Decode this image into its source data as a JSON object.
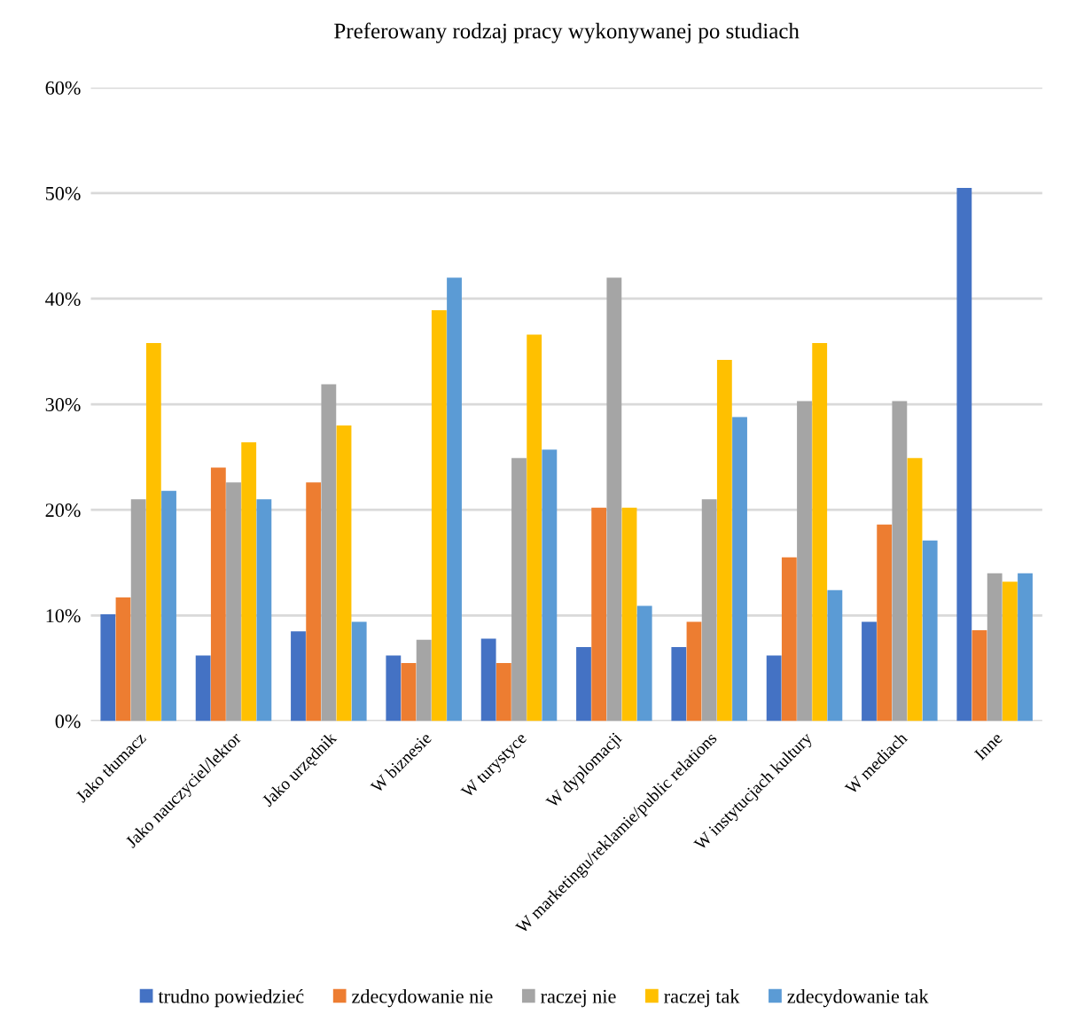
{
  "chart_data": {
    "type": "bar",
    "title": "Preferowany rodzaj pracy wykonywanej po studiach",
    "categories": [
      "Jako tłumacz",
      "Jako nauczyciel/lektor",
      "Jako urzędnik",
      "W biznesie",
      "W turystyce",
      "W dyplomacji",
      "W marketingu/reklamie/public relations",
      "W instytucjach kultury",
      "W mediach",
      "Inne"
    ],
    "series": [
      {
        "name": "trudno powiedzieć",
        "color": "#4472c4",
        "values": [
          10.1,
          6.2,
          8.5,
          6.2,
          7.8,
          7.0,
          7.0,
          6.2,
          9.4,
          50.5
        ]
      },
      {
        "name": "zdecydowanie nie",
        "color": "#ed7d31",
        "values": [
          11.7,
          24.0,
          22.6,
          5.5,
          5.5,
          20.2,
          9.4,
          15.5,
          18.6,
          8.6
        ]
      },
      {
        "name": "raczej nie",
        "color": "#a5a5a5",
        "values": [
          21.0,
          22.6,
          31.9,
          7.7,
          24.9,
          42.0,
          21.0,
          30.3,
          30.3,
          14.0
        ]
      },
      {
        "name": "raczej tak",
        "color": "#ffc000",
        "values": [
          35.8,
          26.4,
          28.0,
          38.9,
          36.6,
          20.2,
          34.2,
          35.8,
          24.9,
          13.2
        ]
      },
      {
        "name": "zdecydowanie tak",
        "color": "#5b9bd5",
        "values": [
          21.8,
          21.0,
          9.4,
          42.0,
          25.7,
          10.9,
          28.8,
          12.4,
          17.1,
          14.0
        ]
      }
    ],
    "ylim": [
      0,
      60
    ],
    "yticks": [
      {
        "value": 0,
        "label": "0%"
      },
      {
        "value": 10,
        "label": "10%"
      },
      {
        "value": 20,
        "label": "20%"
      },
      {
        "value": 30,
        "label": "30%"
      },
      {
        "value": 40,
        "label": "40%"
      },
      {
        "value": 50,
        "label": "50%"
      },
      {
        "value": 60,
        "label": "60%"
      }
    ],
    "grid": "y",
    "legend": "bottom"
  }
}
